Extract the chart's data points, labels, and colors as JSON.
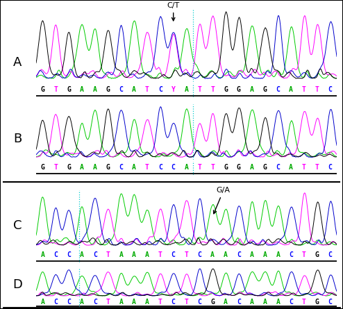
{
  "panel_A_seq": [
    "G",
    "T",
    "G",
    "A",
    "A",
    "G",
    "C",
    "A",
    "T",
    "C",
    "Y",
    "A",
    "T",
    "T",
    "G",
    "G",
    "A",
    "G",
    "C",
    "A",
    "T",
    "T",
    "C"
  ],
  "panel_B_seq": [
    "G",
    "T",
    "G",
    "A",
    "A",
    "G",
    "C",
    "A",
    "T",
    "C",
    "C",
    "A",
    "T",
    "T",
    "G",
    "G",
    "A",
    "G",
    "C",
    "A",
    "T",
    "T",
    "C"
  ],
  "panel_C_seq": [
    "A",
    "C",
    "C",
    "A",
    "C",
    "T",
    "A",
    "A",
    "A",
    "T",
    "C",
    "T",
    "C",
    "A",
    "A",
    "C",
    "A",
    "A",
    "A",
    "C",
    "T",
    "G",
    "C"
  ],
  "panel_D_seq": [
    "A",
    "C",
    "C",
    "A",
    "C",
    "T",
    "A",
    "A",
    "A",
    "T",
    "C",
    "T",
    "C",
    "G",
    "A",
    "C",
    "A",
    "A",
    "A",
    "C",
    "T",
    "G",
    "C"
  ],
  "base_colors": {
    "A": "#00aa00",
    "T": "#ff00ff",
    "G": "#000000",
    "C": "#0000ff",
    "Y": "#ff00ff"
  },
  "panel_labels": [
    "A",
    "B",
    "C",
    "D"
  ],
  "annotation_AB": "C/T",
  "annotation_CD": "G/A",
  "dot_line_AB_idx": 12.0,
  "dot_line_CD_idx": 3.3,
  "mut_idx_A": 10,
  "mut_idx_C": 13,
  "trace_lw": 0.7,
  "fig_w": 4.94,
  "fig_h": 4.45,
  "dpi": 100
}
